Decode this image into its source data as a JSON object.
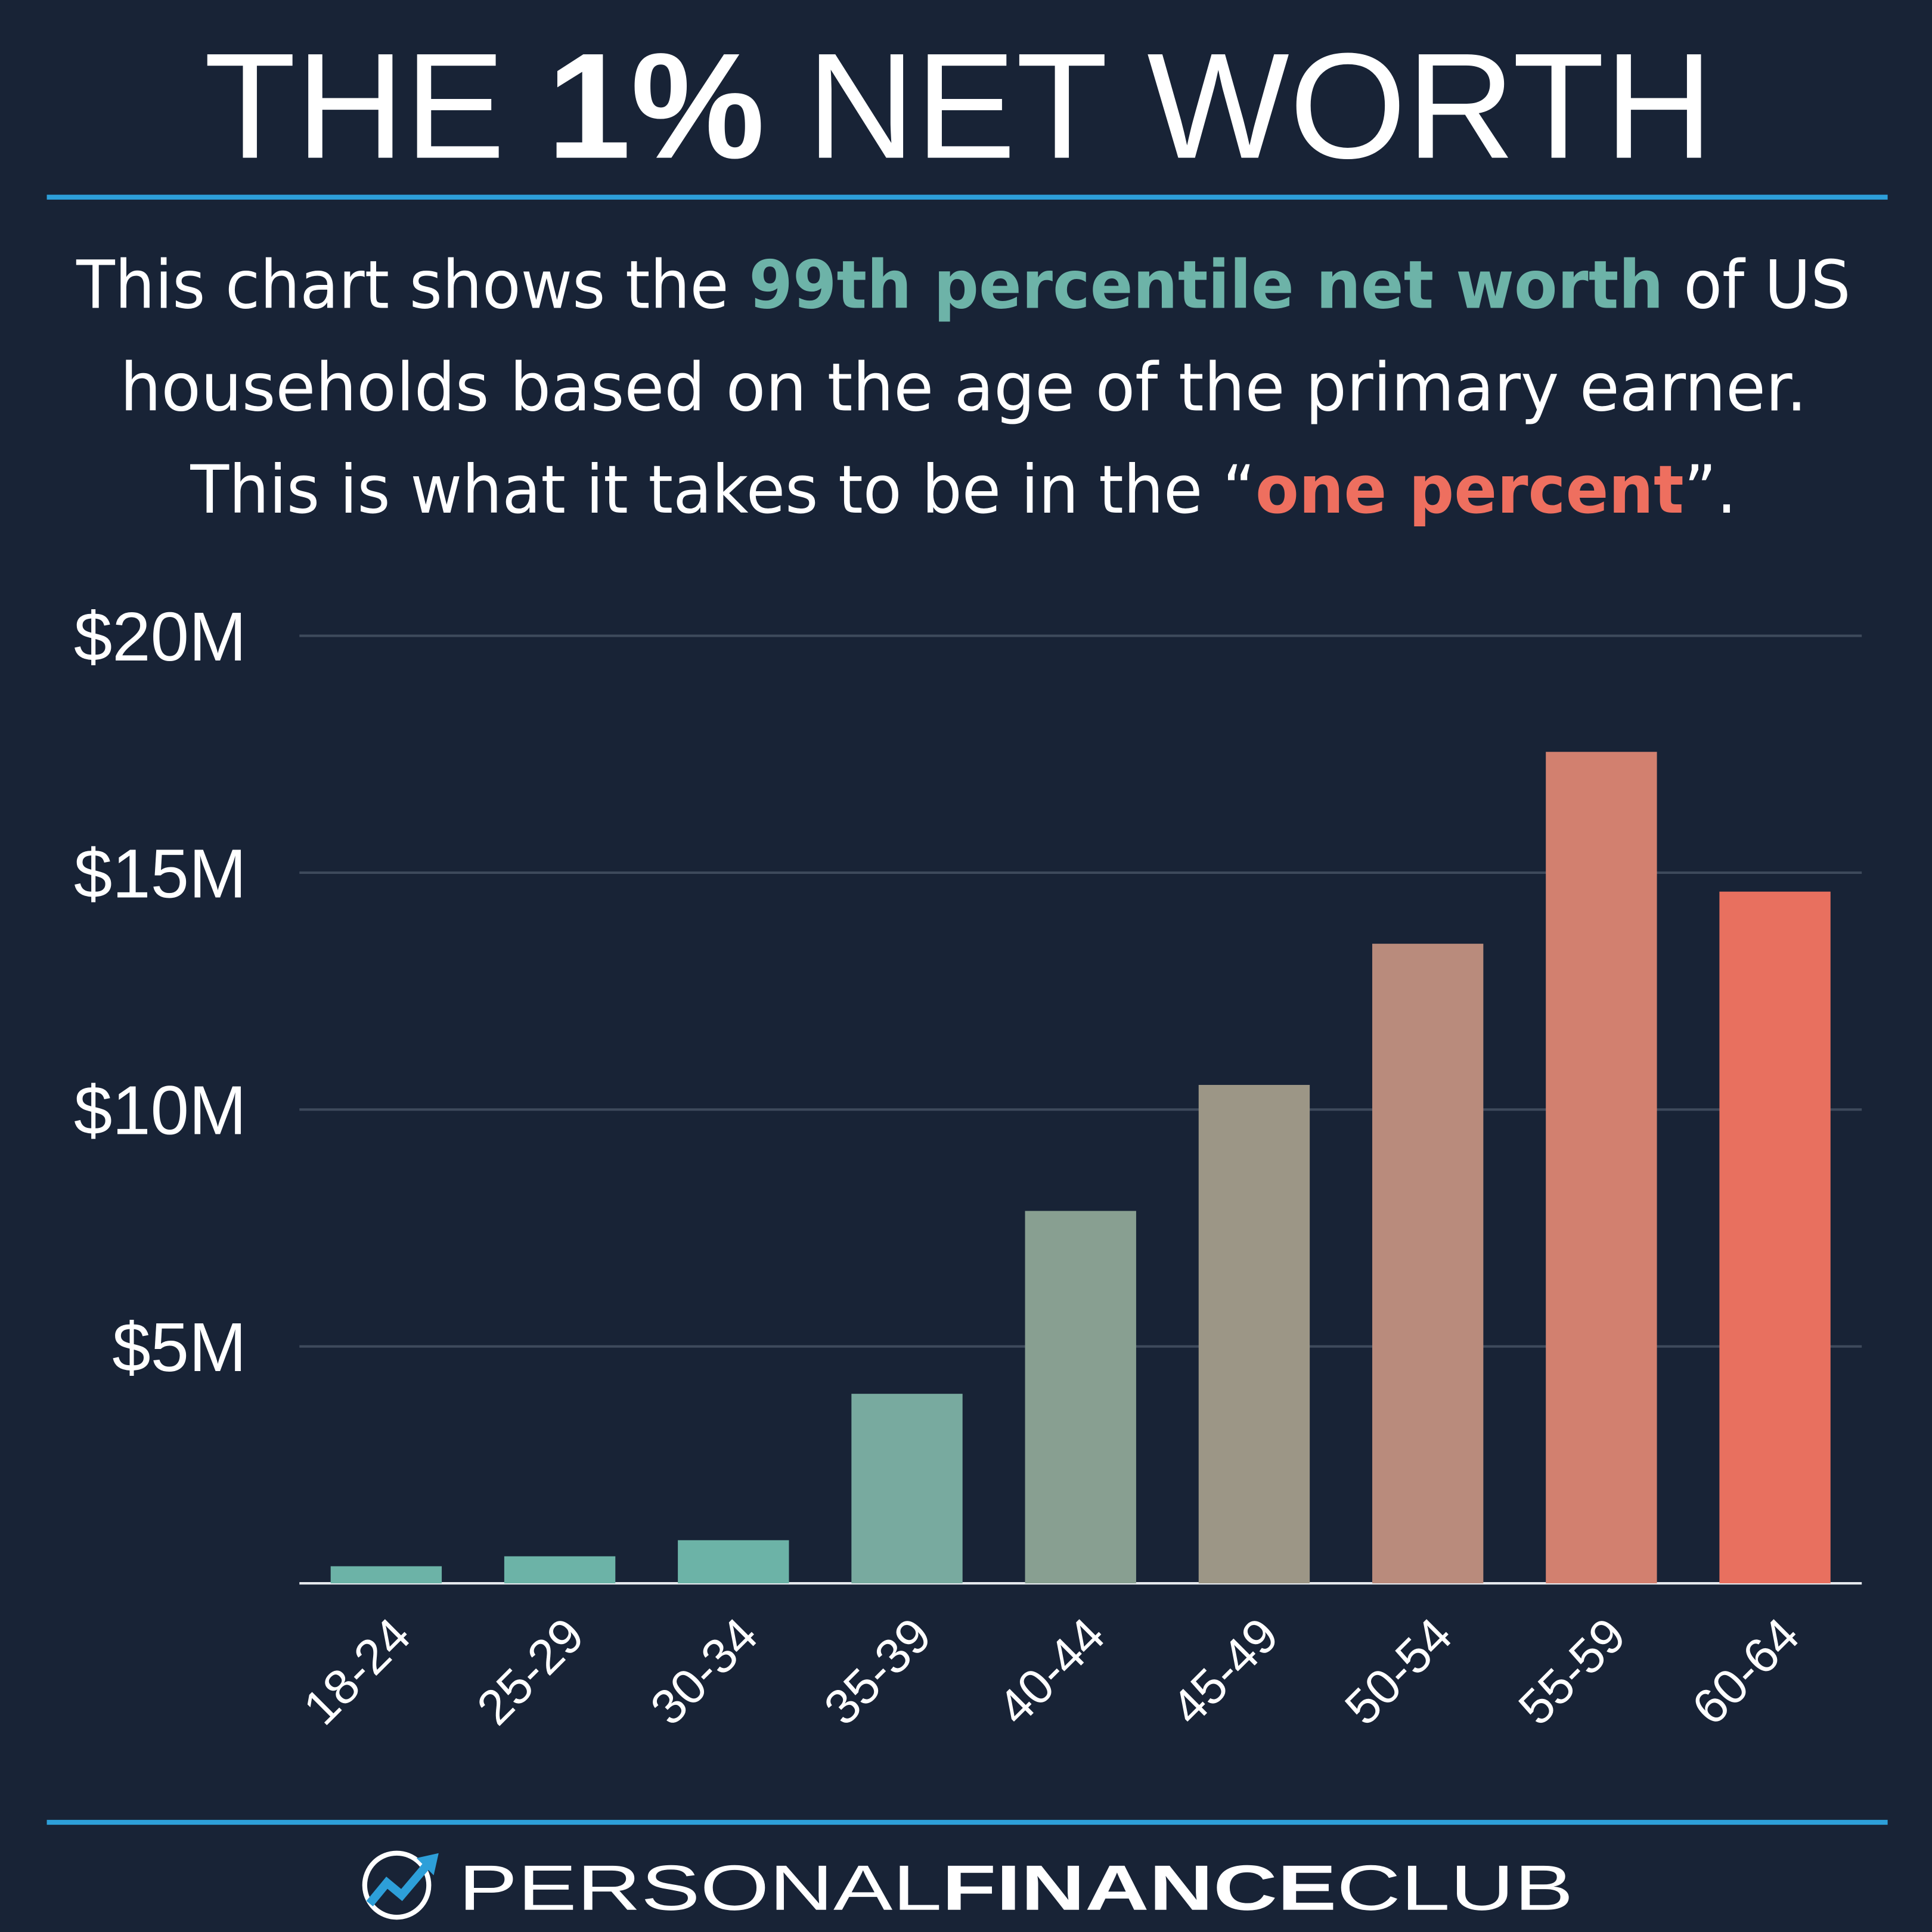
{
  "chart_data": {
    "type": "bar",
    "title": [
      "THE ",
      "1%",
      " NET WORTH"
    ],
    "subtitle": [
      [
        "This chart shows the ",
        "99th percentile net worth",
        " of US"
      ],
      [
        "households based on the age of the primary earner."
      ],
      [
        "This is what it takes to be in the “",
        "one percent",
        "”."
      ]
    ],
    "categories": [
      "18-24",
      "25-29",
      "30-34",
      "35-39",
      "40-44",
      "45-49",
      "50-54",
      "55-59",
      "60-64"
    ],
    "values": [
      360000,
      570000,
      910000,
      4000000,
      7860000,
      10520000,
      13500000,
      17550000,
      14600000
    ],
    "colors": [
      "#6cb3a7",
      "#6cb3a7",
      "#6cb3a7",
      "#78aa9f",
      "#889f91",
      "#9c9686",
      "#b98b7c",
      "#d2806f",
      "#e8705f"
    ],
    "ylim": [
      0,
      20000000
    ],
    "yticks": [
      {
        "value": 5000000,
        "label": "$5M"
      },
      {
        "value": 10000000,
        "label": "$10M"
      },
      {
        "value": 15000000,
        "label": "$15M"
      },
      {
        "value": 20000000,
        "label": "$20M"
      }
    ],
    "grid": true,
    "footer": [
      "PERSONAL",
      "FINANCE",
      "CLUB"
    ]
  }
}
